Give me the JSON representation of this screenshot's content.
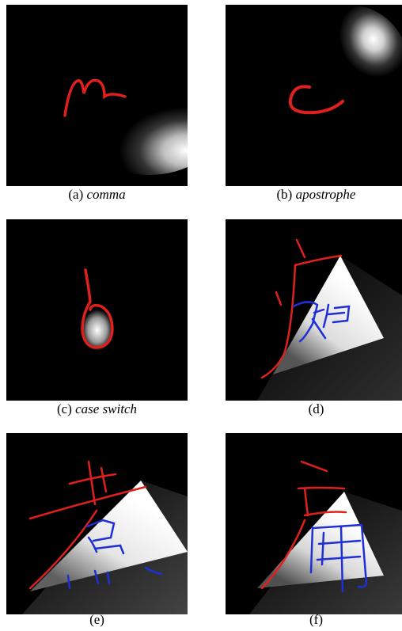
{
  "figure": {
    "panels": [
      {
        "id": "a",
        "letter": "(a)",
        "name": "comma"
      },
      {
        "id": "b",
        "letter": "(b)",
        "name": "apostrophe"
      },
      {
        "id": "c",
        "letter": "(c)",
        "name": "case switch"
      },
      {
        "id": "d",
        "letter": "(d)",
        "name": ""
      },
      {
        "id": "e",
        "letter": "(e)",
        "name": ""
      },
      {
        "id": "f",
        "letter": "(f)",
        "name": ""
      }
    ]
  },
  "colors": {
    "background": "#000000",
    "stroke_primary": "#e0201c",
    "stroke_secondary": "#1f2fd6",
    "glow": "#ffffff"
  }
}
